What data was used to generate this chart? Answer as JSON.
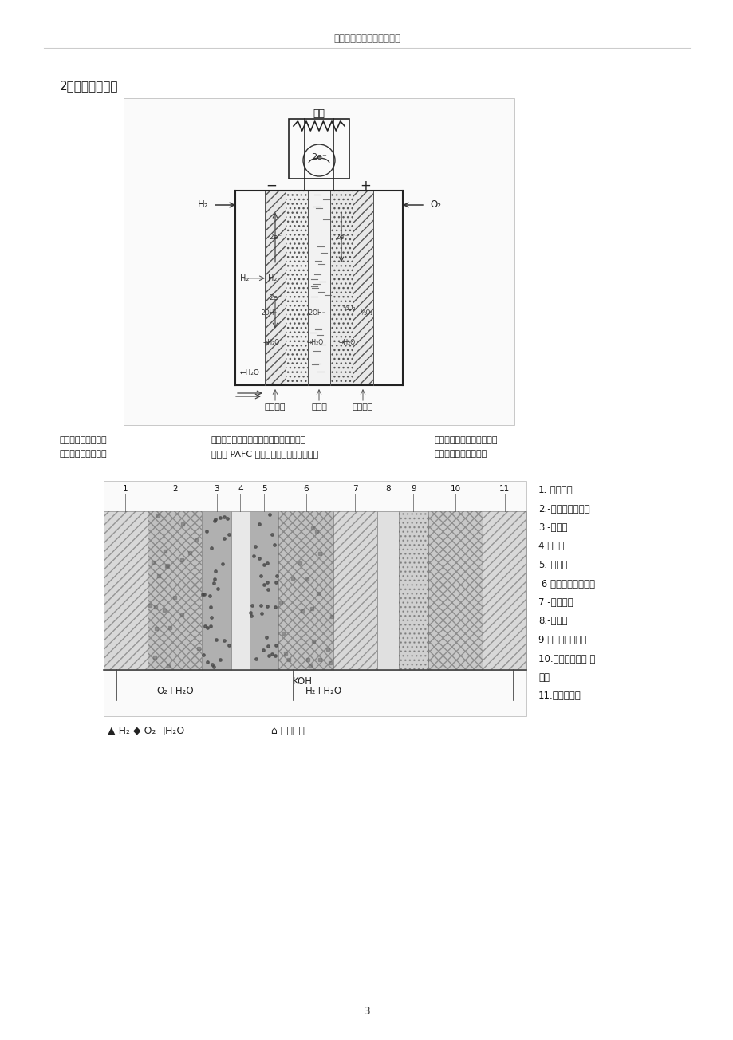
{
  "header_text": "氢能汽车燃料电池系统设计",
  "page_number": "3",
  "section_title": "2、系统硬件设计",
  "para_col1_l1": "阳极侧生成的水必须",
  "para_col1_l2": "（氧电极）的极化损",
  "para_col2_l1": "及时排除，以免将电解液溶液稀释或流没",
  "para_col2_l2": "失要比 PAFC 等酸性电解质小，因而可以",
  "para_col3_l1": "多孔气体扩散电极由于阴极",
  "para_col3_l2": "获得很高的电流效益。",
  "right_labels": [
    "1.-氧支撑板",
    "2.-氧蜂窝（气室）",
    "3.-氧电极",
    "4 石棉膜",
    "5.-氢电极",
    " 6 一氢蜂窝（气室）",
    "7.-氢支撑板",
    "8.-排水膜",
    "9 一排水膜支撑板",
    "10.除水蜂窝（蒸 发",
    "室）",
    "11.除水蜂窝板"
  ],
  "diag1_label_left": "多孔阳极",
  "diag1_label_mid": "电解质",
  "diag1_label_right": "多孔阴极",
  "diag1_label_load": "负载",
  "diag2_koh": "KOH",
  "diag2_o2": "O₂+H₂O",
  "diag2_h2": "H₂+H₂O",
  "legend_text": "▲ H₂ ◆ O₂ ＋H₂O",
  "legend_text2": "三相界面",
  "bg_color": "#ffffff",
  "text_color": "#1a1a1a",
  "diagram_bg": "#f5f5f5",
  "diagram_border": "#aaaaaa"
}
